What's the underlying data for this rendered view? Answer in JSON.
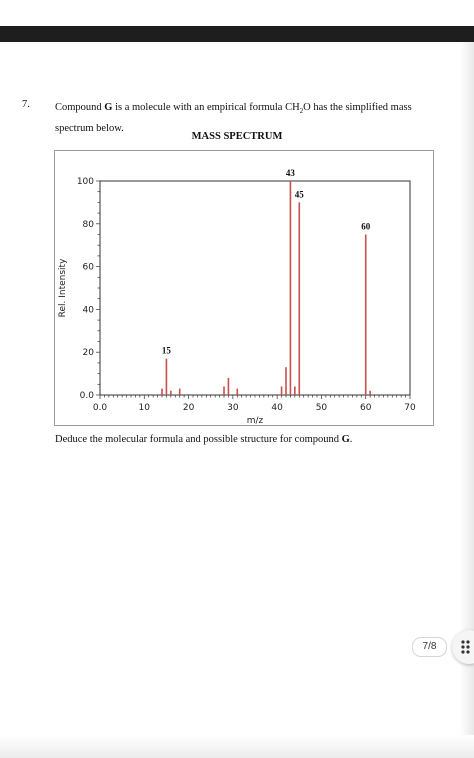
{
  "question": {
    "number": "7.",
    "text_before_bold": "Compound ",
    "compound": "G",
    "text_after_bold": " is a molecule with an empirical formula ",
    "formula_ch": "CH",
    "formula_sub": "2",
    "formula_o": "O",
    "text_end": " has the simplified mass spectrum below.",
    "chart_title": "MASS SPECTRUM",
    "deduce_text": "Deduce the molecular formula and possible structure for compound ",
    "deduce_compound": "G",
    "deduce_end": "."
  },
  "pager": {
    "label": "7/8"
  },
  "icons": {
    "menu": "grid-dots-icon"
  },
  "colors": {
    "peak": "#c94f4f",
    "axis": "#333333",
    "frame": "#9a9a9a"
  },
  "chart_data": {
    "type": "bar",
    "title": "MASS SPECTRUM",
    "xlabel": "m/z",
    "ylabel": "Rel. Intensity",
    "xlim": [
      0,
      70
    ],
    "ylim": [
      0,
      100
    ],
    "xticks": [
      "0.0",
      "10",
      "20",
      "30",
      "40",
      "50",
      "60",
      "70"
    ],
    "yticks": [
      "0.0",
      "20",
      "40",
      "60",
      "80",
      "100"
    ],
    "peaks": [
      {
        "x": 14,
        "y": 3
      },
      {
        "x": 15,
        "y": 17,
        "label": "15"
      },
      {
        "x": 16,
        "y": 2
      },
      {
        "x": 18,
        "y": 3
      },
      {
        "x": 28,
        "y": 4
      },
      {
        "x": 29,
        "y": 8
      },
      {
        "x": 31,
        "y": 3
      },
      {
        "x": 41,
        "y": 4
      },
      {
        "x": 42,
        "y": 13
      },
      {
        "x": 43,
        "y": 100,
        "label": "43"
      },
      {
        "x": 44,
        "y": 4
      },
      {
        "x": 45,
        "y": 90,
        "label": "45"
      },
      {
        "x": 60,
        "y": 75,
        "label": "60"
      },
      {
        "x": 61,
        "y": 2
      }
    ]
  }
}
